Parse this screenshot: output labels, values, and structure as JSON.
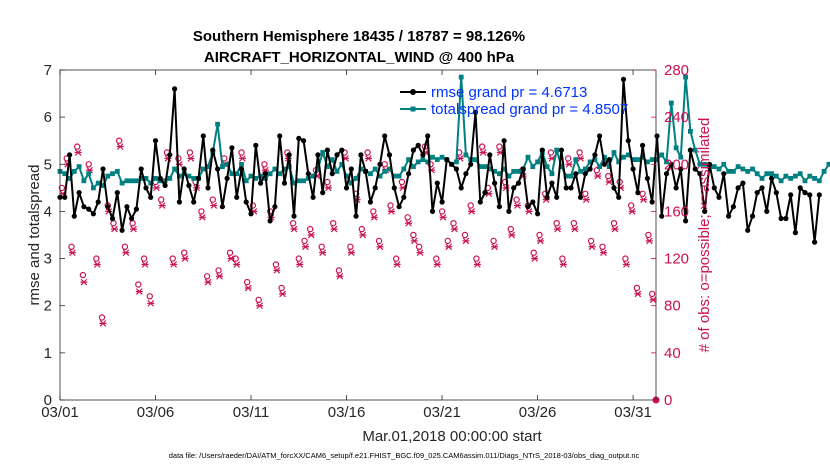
{
  "chart_data": {
    "type": "line",
    "title": "Southern Hemisphere 18435 / 18787 = 98.126%",
    "subtitle": "AIRCRAFT_HORIZONTAL_WIND @ 400 hPa",
    "xlabel": "Mar.01,2018 00:00:00 start",
    "ylabel_left": "rmse and totalspread",
    "ylabel_right": "# of obs: o=possible; ×=assimilated",
    "xlim": [
      1,
      32.2
    ],
    "ylim_left": [
      0,
      7
    ],
    "ylim_right": [
      0,
      280
    ],
    "x_ticks": [
      1,
      6,
      11,
      16,
      21,
      26,
      31
    ],
    "x_tick_labels": [
      "03/01",
      "03/06",
      "03/11",
      "03/16",
      "03/21",
      "03/26",
      "03/31"
    ],
    "y_ticks_left": [
      0,
      1,
      2,
      3,
      4,
      5,
      6,
      7
    ],
    "y_ticks_right": [
      0,
      40,
      80,
      120,
      160,
      200,
      240,
      280
    ],
    "footer": "data file: /Users/raeder/DAI/ATM_forcXX/CAM6_setup/f.e21.FHIST_BGC.f09_025.CAM6assim.011/Diags_NTrS_2018-03/obs_diag_output.nc",
    "colors": {
      "rmse": "#000000",
      "spread": "#008080",
      "obs": "#cc1155",
      "legend_text": "#0033ff"
    },
    "legend": [
      {
        "name": "rmse grand pr = 4.6713",
        "color": "#000000"
      },
      {
        "name": "totalspread grand pr = 4.8507",
        "color": "#008080"
      }
    ],
    "series": [
      {
        "name": "rmse",
        "axis": "left",
        "x_start": 1.0,
        "x_step": 0.25,
        "values": [
          4.3,
          4.3,
          5.2,
          3.9,
          4.4,
          4.1,
          4.05,
          3.95,
          4.2,
          4.9,
          4.1,
          3.85,
          4.4,
          3.6,
          4.1,
          3.85,
          4.05,
          4.9,
          4.5,
          4.3,
          5.5,
          4.7,
          4.55,
          5.2,
          6.6,
          4.2,
          4.9,
          4.55,
          4.2,
          4.7,
          5.6,
          4.5,
          5.3,
          4.9,
          4.1,
          4.7,
          5.35,
          4.3,
          4.9,
          4.2,
          3.95,
          5.4,
          4.6,
          4.8,
          3.8,
          4.1,
          5.6,
          4.6,
          5.2,
          3.9,
          5.55,
          5.5,
          4.8,
          4.3,
          5.2,
          4.4,
          5.3,
          4.8,
          5.2,
          5.3,
          4.5,
          4.9,
          3.9,
          5.2,
          4.85,
          4.2,
          4.5,
          5.0,
          5.6,
          5.2,
          4.5,
          4.1,
          4.3,
          4.8,
          5.3,
          5.4,
          5.2,
          5.6,
          4.0,
          4.6,
          4.2,
          5.1,
          5.0,
          4.9,
          4.5,
          4.8,
          5.0,
          6.1,
          4.2,
          4.4,
          5.2,
          4.6,
          4.1,
          5.5,
          4.0,
          4.5,
          4.6,
          4.9,
          4.1,
          4.2,
          3.95,
          5.3,
          4.3,
          4.6,
          4.3,
          5.3,
          4.5,
          4.5,
          4.8,
          4.3,
          4.8,
          4.9,
          5.2,
          5.6,
          5.0,
          5.1,
          4.5,
          4.3,
          6.8,
          5.5,
          4.9,
          4.4,
          5.4,
          4.7,
          4.2,
          5.6,
          3.9,
          4.8,
          5.0,
          4.5,
          4.9,
          3.8,
          5.3,
          4.9,
          4.8,
          4.0,
          5.0,
          4.5,
          4.3,
          4.8,
          3.9,
          4.1,
          4.5,
          4.6,
          3.6,
          3.9,
          4.4,
          4.5,
          4.0,
          4.7,
          4.4,
          3.85,
          3.85,
          4.35,
          3.55,
          4.5,
          4.4,
          4.35,
          3.35,
          4.35
        ]
      },
      {
        "name": "totalspread",
        "axis": "left",
        "x_start": 1.0,
        "x_step": 0.25,
        "values": [
          4.85,
          4.8,
          4.7,
          4.85,
          4.95,
          4.65,
          4.8,
          4.5,
          4.6,
          4.55,
          4.75,
          4.8,
          4.85,
          4.6,
          4.65,
          4.65,
          4.65,
          4.7,
          4.7,
          4.6,
          4.7,
          4.65,
          4.65,
          4.7,
          4.9,
          4.75,
          4.8,
          4.75,
          4.7,
          4.7,
          4.9,
          4.95,
          5.25,
          5.85,
          4.95,
          5.0,
          4.8,
          4.8,
          5.0,
          4.65,
          4.75,
          4.7,
          4.75,
          4.7,
          4.8,
          4.9,
          4.8,
          4.9,
          4.95,
          4.6,
          4.65,
          4.65,
          4.7,
          4.75,
          4.9,
          5.25,
          4.95,
          5.1,
          4.85,
          5.0,
          4.75,
          4.6,
          4.7,
          4.9,
          4.85,
          4.8,
          4.9,
          4.75,
          4.85,
          4.9,
          4.75,
          4.75,
          4.9,
          5.1,
          4.95,
          5.05,
          5.1,
          5.05,
          5.15,
          5.1,
          5.15,
          5.1,
          5.0,
          5.05,
          6.85,
          5.2,
          5.1,
          5.1,
          4.95,
          4.95,
          4.9,
          4.85,
          4.8,
          4.9,
          4.75,
          4.85,
          4.85,
          4.9,
          5.15,
          4.95,
          5.05,
          5.25,
          4.95,
          4.8,
          5.3,
          4.95,
          4.75,
          4.75,
          5.1,
          4.85,
          4.9,
          5.05,
          5.1,
          4.95,
          5.15,
          4.95,
          5.25,
          5.05,
          5.15,
          5.2,
          5.1,
          5.1,
          5.15,
          5.05,
          5.1,
          5.1,
          5.2,
          5.05,
          6.3,
          5.35,
          5.15,
          6.85,
          5.7,
          5.3,
          5.0,
          5.0,
          4.95,
          4.95,
          4.9,
          5.0,
          4.85,
          4.85,
          4.95,
          4.9,
          4.85,
          4.9,
          4.8,
          4.7,
          4.8,
          4.8,
          4.75,
          4.65,
          4.75,
          4.7,
          4.75,
          4.8,
          4.65,
          4.75,
          4.7,
          4.65,
          4.85,
          5.0
        ]
      },
      {
        "name": "obs possible",
        "axis": "right",
        "marker": "o",
        "x": [
          1.1,
          1.35,
          1.6,
          1.9,
          2.2,
          2.5,
          2.9,
          3.2,
          3.5,
          3.8,
          4.1,
          4.4,
          4.8,
          5.1,
          5.4,
          5.7,
          6.0,
          6.3,
          6.6,
          6.9,
          7.2,
          7.5,
          7.8,
          8.1,
          8.4,
          8.7,
          9.0,
          9.3,
          9.6,
          9.9,
          10.2,
          10.5,
          10.8,
          11.1,
          11.4,
          11.7,
          12.0,
          12.3,
          12.6,
          12.9,
          13.2,
          13.5,
          13.8,
          14.1,
          14.4,
          14.7,
          15.0,
          15.3,
          15.6,
          15.9,
          16.2,
          16.5,
          16.8,
          17.1,
          17.4,
          17.7,
          18.0,
          18.3,
          18.6,
          18.9,
          19.2,
          19.5,
          19.8,
          20.1,
          20.4,
          20.7,
          21.0,
          21.3,
          21.6,
          21.9,
          22.2,
          22.5,
          22.8,
          23.1,
          23.4,
          23.7,
          24.0,
          24.3,
          24.6,
          24.9,
          25.2,
          25.5,
          25.8,
          26.1,
          26.4,
          26.7,
          27.0,
          27.3,
          27.6,
          27.9,
          28.2,
          28.5,
          28.8,
          29.1,
          29.4,
          29.7,
          30.0,
          30.3,
          30.6,
          30.9,
          31.2,
          31.5,
          31.8,
          32.0
        ],
        "values": [
          180,
          205,
          130,
          215,
          106,
          200,
          120,
          70,
          165,
          150,
          220,
          130,
          150,
          98,
          120,
          88,
          185,
          170,
          210,
          120,
          205,
          125,
          210,
          185,
          160,
          105,
          170,
          110,
          205,
          125,
          120,
          210,
          100,
          165,
          85,
          200,
          160,
          115,
          95,
          210,
          150,
          120,
          135,
          145,
          195,
          130,
          185,
          150,
          110,
          210,
          130,
          175,
          145,
          210,
          160,
          135,
          200,
          165,
          120,
          185,
          155,
          140,
          130,
          215,
          200,
          120,
          160,
          135,
          150,
          210,
          140,
          165,
          120,
          215,
          180,
          135,
          215,
          185,
          145,
          170,
          195,
          165,
          125,
          140,
          175,
          210,
          150,
          120,
          205,
          150,
          210,
          175,
          135,
          195,
          130,
          190,
          150,
          185,
          120,
          165,
          95,
          175,
          140,
          90
        ]
      },
      {
        "name": "obs assimilated",
        "axis": "right",
        "marker": "x",
        "x": [
          1.15,
          1.4,
          1.65,
          1.95,
          2.25,
          2.55,
          2.95,
          3.25,
          3.55,
          3.85,
          4.15,
          4.45,
          4.85,
          5.15,
          5.45,
          5.75,
          6.05,
          6.35,
          6.65,
          6.95,
          7.25,
          7.55,
          7.85,
          8.15,
          8.45,
          8.75,
          9.05,
          9.35,
          9.65,
          9.95,
          10.25,
          10.55,
          10.85,
          11.15,
          11.45,
          11.75,
          12.05,
          12.35,
          12.65,
          12.95,
          13.25,
          13.55,
          13.85,
          14.15,
          14.45,
          14.75,
          15.05,
          15.35,
          15.65,
          15.95,
          16.25,
          16.55,
          16.85,
          17.15,
          17.45,
          17.75,
          18.05,
          18.35,
          18.65,
          18.95,
          19.25,
          19.55,
          19.85,
          20.15,
          20.45,
          20.75,
          21.05,
          21.35,
          21.65,
          21.95,
          22.25,
          22.55,
          22.85,
          23.15,
          23.45,
          23.75,
          24.05,
          24.35,
          24.65,
          24.95,
          25.25,
          25.55,
          25.85,
          26.15,
          26.45,
          26.75,
          27.05,
          27.35,
          27.65,
          27.95,
          28.25,
          28.55,
          28.85,
          29.15,
          29.45,
          29.75,
          30.05,
          30.35,
          30.65,
          30.95,
          31.25,
          31.55,
          31.85,
          32.05
        ],
        "values": [
          175,
          200,
          125,
          210,
          100,
          195,
          115,
          65,
          160,
          145,
          215,
          125,
          145,
          92,
          115,
          82,
          180,
          165,
          205,
          115,
          200,
          120,
          205,
          180,
          155,
          100,
          165,
          105,
          200,
          120,
          115,
          205,
          95,
          160,
          80,
          195,
          155,
          110,
          90,
          205,
          145,
          115,
          130,
          140,
          190,
          125,
          180,
          145,
          105,
          205,
          125,
          170,
          140,
          205,
          155,
          130,
          195,
          160,
          115,
          180,
          150,
          135,
          125,
          210,
          195,
          115,
          155,
          130,
          145,
          205,
          135,
          160,
          115,
          210,
          175,
          130,
          210,
          180,
          140,
          165,
          190,
          160,
          120,
          135,
          170,
          205,
          145,
          115,
          200,
          145,
          205,
          170,
          130,
          190,
          125,
          185,
          145,
          180,
          115,
          160,
          90,
          170,
          135,
          85
        ]
      }
    ]
  }
}
